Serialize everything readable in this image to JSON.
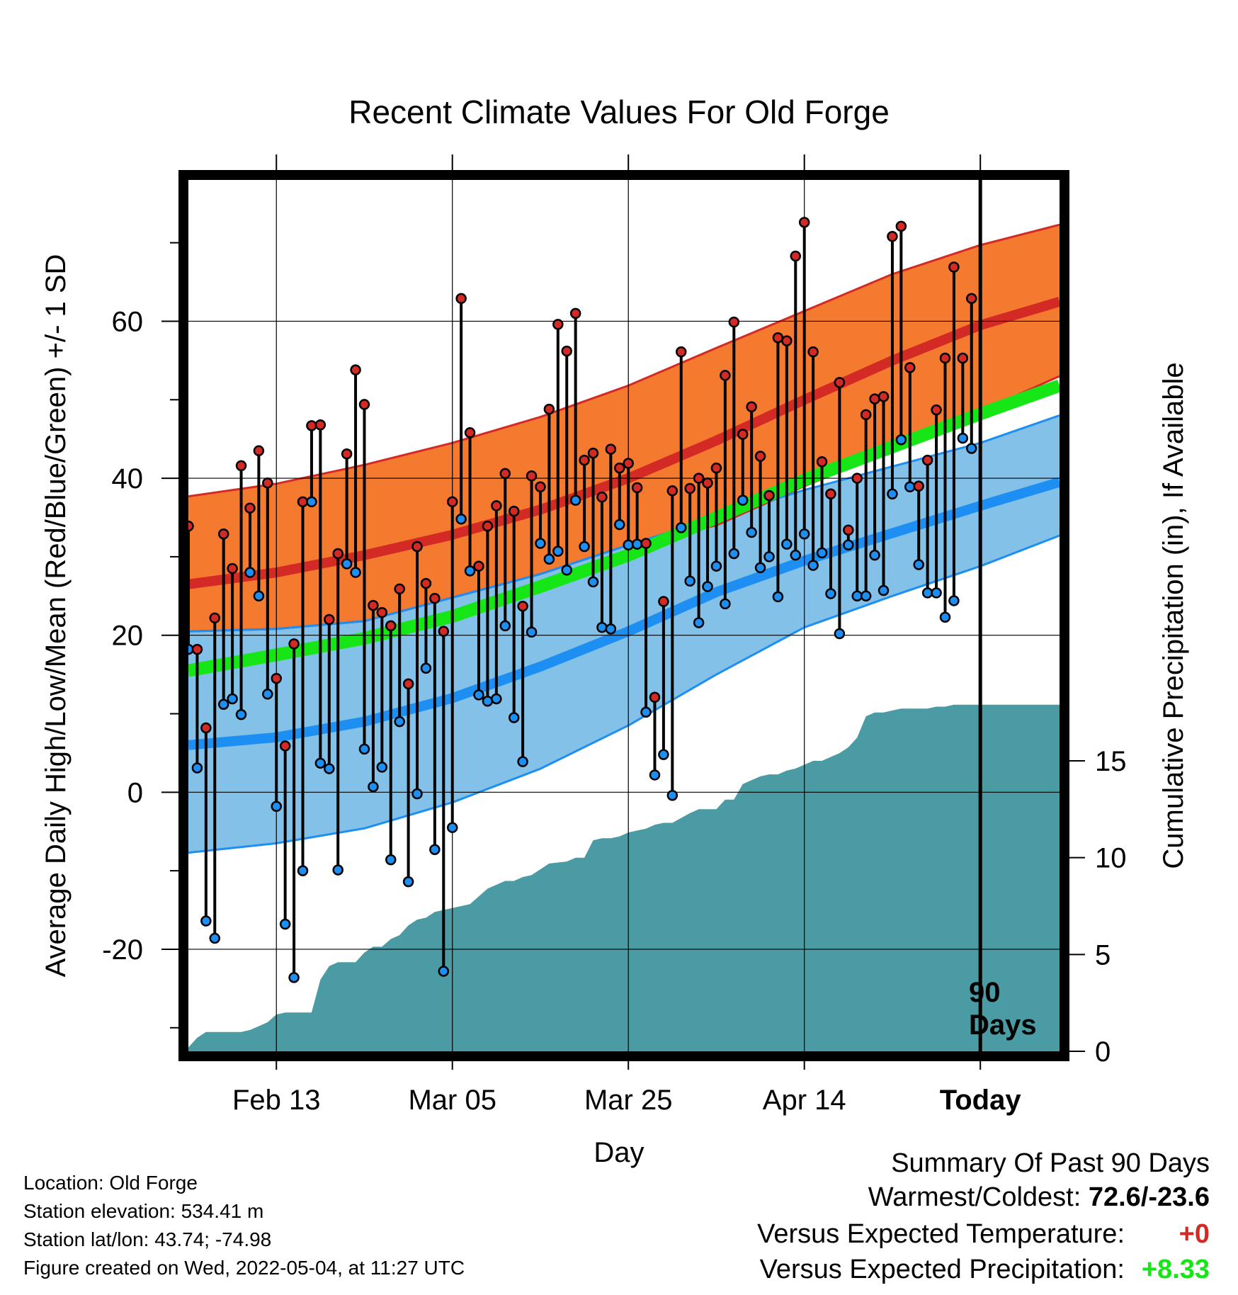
{
  "title": "Recent Climate Values For Old Forge",
  "xlabel": "Day",
  "ylabel_left": "Average Daily High/Low/Mean (Red/Blue/Green) +/- 1 SD",
  "ylabel_right": "Cumulative Precipitation (in), If Available",
  "today_label": [
    "90",
    "Days"
  ],
  "footer": {
    "location": "Location: Old Forge",
    "elevation": "Station elevation: 534.41 m",
    "latlon": "Station lat/lon: 43.74; -74.98",
    "created": "Figure created on Wed, 2022-05-04, at 11:27 UTC"
  },
  "summary": {
    "title": "Summary Of Past 90 Days",
    "warm_cold_label": "Warmest/Coldest:",
    "warm_cold_value": "72.6/-23.6",
    "temp_label": "Versus Expected Temperature:",
    "temp_value": "+0",
    "precip_label": "Versus Expected Precipitation:",
    "precip_value": "+8.33"
  },
  "colors": {
    "high_band": "#f47a30",
    "high_line": "#d42a25",
    "low_band": "#84c1e8",
    "low_line": "#1e8ff2",
    "mean_line": "#16e616",
    "overlap": "#991717",
    "precip": "#4a9ba4",
    "high_dot": "#d42a25",
    "low_dot": "#1e8ff2"
  },
  "chart_data": {
    "type": "line",
    "x_unit": "day",
    "x_ticks": [
      {
        "day": 10,
        "label": "Feb 13"
      },
      {
        "day": 30,
        "label": "Mar 05"
      },
      {
        "day": 50,
        "label": "Mar 25"
      },
      {
        "day": 70,
        "label": "Apr 14"
      },
      {
        "day": 90,
        "label": "Today"
      }
    ],
    "xlim": [
      0,
      99
    ],
    "ylim_left": [
      -33,
      78
    ],
    "yticks_left": [
      -20,
      0,
      20,
      40,
      60
    ],
    "ylim_right": [
      0,
      45
    ],
    "yticks_right": [
      0,
      5,
      10,
      15
    ],
    "today_day": 90,
    "normals": {
      "days": [
        0,
        10,
        20,
        30,
        40,
        50,
        60,
        70,
        80,
        90,
        99
      ],
      "high_mean": [
        26.5,
        28.0,
        30.2,
        32.8,
        36.0,
        40.0,
        44.8,
        50.0,
        55.0,
        59.5,
        62.5
      ],
      "high_upper": [
        37.7,
        39.3,
        41.7,
        44.5,
        47.8,
        51.8,
        56.6,
        61.3,
        66.0,
        69.7,
        72.3
      ],
      "high_lower": [
        20.5,
        20.8,
        21.8,
        24.8,
        27.8,
        31.5,
        34.0,
        39.0,
        43.5,
        48.5,
        53.0
      ],
      "low_mean": [
        6.0,
        7.0,
        9.0,
        12.0,
        16.0,
        20.5,
        25.5,
        29.5,
        33.0,
        36.5,
        39.5
      ],
      "low_upper": [
        20.5,
        20.8,
        21.8,
        24.8,
        27.8,
        31.5,
        35.0,
        38.5,
        41.5,
        44.5,
        48.0
      ],
      "low_lower": [
        -7.7,
        -6.5,
        -4.6,
        -1.3,
        3.0,
        8.5,
        15.0,
        21.0,
        25.0,
        28.8,
        32.7
      ],
      "mean": [
        15.5,
        17.5,
        19.6,
        22.4,
        26.2,
        30.2,
        35.0,
        39.8,
        44.0,
        48.2,
        51.8
      ]
    },
    "highs": [
      33.9,
      18.2,
      8.2,
      22.2,
      32.9,
      28.5,
      41.6,
      36.2,
      43.5,
      39.4,
      14.5,
      5.9,
      18.9,
      37.0,
      46.7,
      46.8,
      22.0,
      30.4,
      43.1,
      53.8,
      49.4,
      23.8,
      22.9,
      21.2,
      25.9,
      13.8,
      31.3,
      26.6,
      24.7,
      20.5,
      37.0,
      62.9,
      45.8,
      28.8,
      33.9,
      36.5,
      40.6,
      35.8,
      23.7,
      40.3,
      38.9,
      48.8,
      59.6,
      56.2,
      61.0,
      42.3,
      43.2,
      37.6,
      43.7,
      41.3,
      41.9,
      38.8,
      31.7,
      12.1,
      24.3,
      38.4,
      56.1,
      38.7,
      40.0,
      39.4,
      41.3,
      53.1,
      59.9,
      45.6,
      49.1,
      42.8,
      37.8,
      57.9,
      57.5,
      68.3,
      72.6,
      56.1,
      42.1,
      38.0,
      52.2,
      33.4,
      40.0,
      48.1,
      50.1,
      50.4,
      70.8,
      72.1,
      54.1,
      39.0,
      42.3,
      48.7,
      55.3,
      66.9,
      55.3,
      62.9
    ],
    "lows": [
      18.2,
      3.1,
      -16.4,
      -18.6,
      11.2,
      11.9,
      9.9,
      28.0,
      25.0,
      12.5,
      -1.8,
      -16.8,
      -23.6,
      -10.0,
      37.0,
      3.7,
      3.0,
      -9.9,
      29.1,
      28.0,
      5.5,
      0.7,
      3.2,
      -8.6,
      9.0,
      -11.4,
      -0.2,
      15.8,
      -7.3,
      -22.8,
      -4.5,
      34.8,
      28.2,
      12.4,
      11.6,
      11.9,
      21.2,
      9.5,
      3.9,
      20.4,
      31.7,
      29.7,
      30.7,
      28.3,
      37.2,
      31.3,
      26.8,
      21.0,
      20.8,
      34.1,
      31.5,
      31.6,
      10.2,
      2.2,
      4.8,
      -0.4,
      33.7,
      26.9,
      21.6,
      26.2,
      28.8,
      24.0,
      30.4,
      37.2,
      33.1,
      28.6,
      30.0,
      24.9,
      31.6,
      30.2,
      32.9,
      28.9,
      30.5,
      25.3,
      20.2,
      31.5,
      25.0,
      25.0,
      30.2,
      25.7,
      38.0,
      44.9,
      38.9,
      29.0,
      25.4,
      25.4,
      22.3,
      24.4,
      45.1,
      43.8
    ],
    "precip_cumulative": {
      "days": [
        0,
        1,
        2,
        6,
        7,
        8,
        9,
        10,
        11,
        12,
        13,
        14,
        15,
        16,
        17,
        19,
        20,
        21,
        22,
        23,
        24,
        25,
        26,
        27,
        28,
        29,
        30,
        31,
        32,
        34,
        36,
        37,
        38,
        39,
        41,
        43,
        44,
        45,
        46,
        47,
        48,
        49,
        50,
        51,
        52,
        53,
        54,
        55,
        57,
        58,
        60,
        61,
        62,
        63,
        64,
        65,
        66,
        67,
        68,
        69,
        70,
        71,
        72,
        73,
        74,
        75,
        76,
        77,
        78,
        79,
        80,
        81,
        82,
        83,
        84,
        85,
        86,
        87,
        88,
        89,
        90,
        99
      ],
      "values": [
        0.2,
        0.7,
        1.0,
        1.0,
        1.1,
        1.3,
        1.5,
        1.9,
        2.0,
        2.0,
        2.0,
        2.0,
        3.7,
        4.4,
        4.6,
        4.6,
        5.1,
        5.4,
        5.4,
        5.8,
        6.0,
        6.5,
        6.8,
        6.9,
        7.2,
        7.3,
        7.4,
        7.5,
        7.6,
        8.4,
        8.8,
        8.8,
        9.0,
        9.1,
        9.7,
        9.8,
        10.0,
        10.0,
        10.9,
        11.0,
        11.0,
        11.1,
        11.3,
        11.4,
        11.5,
        11.7,
        11.8,
        11.8,
        12.3,
        12.5,
        12.5,
        13.0,
        13.0,
        13.8,
        14.0,
        14.2,
        14.3,
        14.3,
        14.5,
        14.6,
        14.8,
        15.0,
        15.0,
        15.2,
        15.4,
        15.7,
        16.2,
        17.3,
        17.5,
        17.5,
        17.6,
        17.7,
        17.7,
        17.7,
        17.7,
        17.8,
        17.8,
        17.9,
        17.9,
        17.9,
        17.9,
        17.9
      ]
    }
  }
}
